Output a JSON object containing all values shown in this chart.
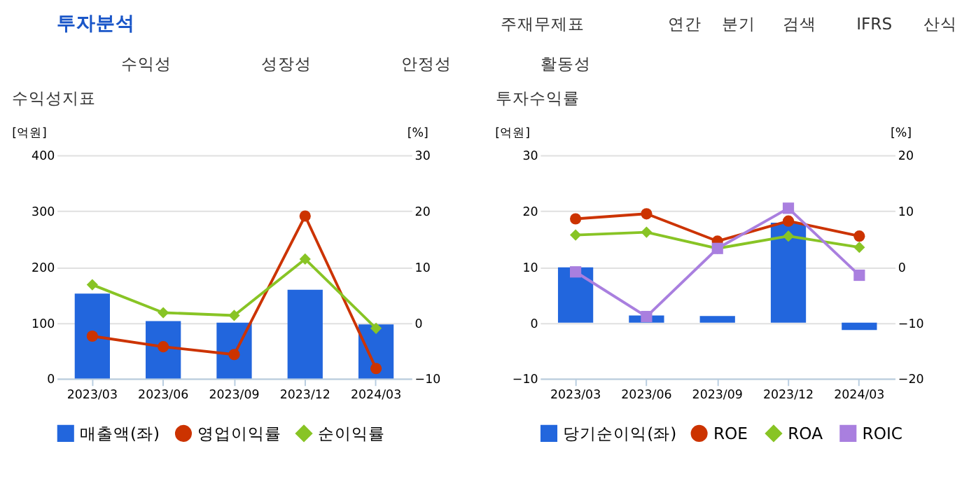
{
  "chart_data": [
    {
      "type": "other",
      "annotations": [
        "투자분석",
        "주재무제표",
        "연간",
        "분기",
        "검색",
        "IFRS",
        "산식",
        "수익성",
        "성장성",
        "안정성",
        "활동성"
      ]
    },
    {
      "type": "bar",
      "title": "수익성지표",
      "ylabel": "[억원]",
      "y2label": "[%]",
      "categories": [
        "2023/03",
        "2023/06",
        "2023/09",
        "2023/12",
        "2024/03"
      ],
      "ylim": [
        0,
        400
      ],
      "yticks": [
        0,
        100,
        200,
        300,
        400
      ],
      "y2lim": [
        -10,
        30
      ],
      "y2ticks": [
        -10,
        0,
        10,
        20,
        30
      ],
      "grid": "y",
      "legend": "bottom",
      "series": [
        {
          "name": "매출액(좌)",
          "type": "bar",
          "color": "#2266dd",
          "values": [
            152,
            103,
            100,
            159,
            97
          ]
        },
        {
          "name": "영업이익률",
          "type": "line",
          "axis": "y2",
          "marker": "circle",
          "color": "#cc3300",
          "values": [
            -2.4,
            -4.3,
            -5.7,
            19.1,
            -8.2
          ]
        },
        {
          "name": "순이익률",
          "type": "line",
          "axis": "y2",
          "marker": "diamond",
          "color": "#88c425",
          "values": [
            6.8,
            1.8,
            1.3,
            11.4,
            -1.0
          ]
        }
      ]
    },
    {
      "type": "bar",
      "title": "투자수익률",
      "ylabel": "[억원]",
      "y2label": "[%]",
      "categories": [
        "2023/03",
        "2023/06",
        "2023/09",
        "2023/12",
        "2024/03"
      ],
      "ylim": [
        -10,
        30
      ],
      "yticks": [
        -10,
        0,
        10,
        20,
        30
      ],
      "y2lim": [
        -20,
        20
      ],
      "y2ticks": [
        -20,
        -10,
        0,
        10,
        20
      ],
      "grid": "y",
      "legend": "bottom",
      "series": [
        {
          "name": "당기순이익(좌)",
          "type": "bar",
          "color": "#2266dd",
          "values": [
            9.9,
            1.3,
            1.2,
            17.9,
            -1.3
          ]
        },
        {
          "name": "ROE",
          "type": "line",
          "axis": "y2",
          "marker": "circle",
          "color": "#cc3300",
          "values": [
            8.6,
            9.5,
            4.6,
            8.2,
            5.5
          ]
        },
        {
          "name": "ROA",
          "type": "line",
          "axis": "y2",
          "marker": "diamond",
          "color": "#88c425",
          "values": [
            5.7,
            6.2,
            3.3,
            5.5,
            3.5
          ]
        },
        {
          "name": "ROIC",
          "type": "line",
          "axis": "y2",
          "marker": "square",
          "color": "#a97fdf",
          "values": [
            -0.9,
            -8.9,
            3.3,
            10.5,
            -1.5
          ]
        }
      ]
    }
  ]
}
